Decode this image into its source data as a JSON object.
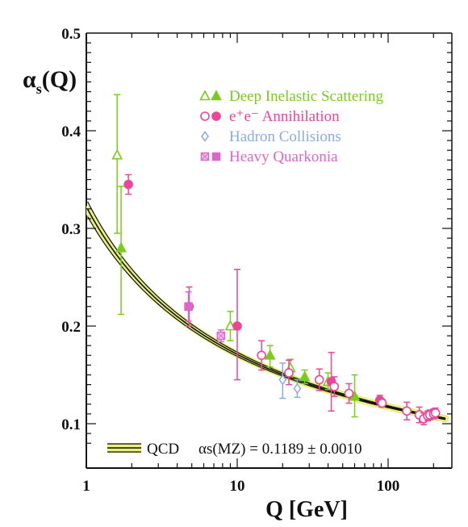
{
  "chart_data": {
    "type": "scatter",
    "title": "",
    "xscale": "log",
    "xlim": [
      1,
      250
    ],
    "ylim": [
      0.08,
      0.5
    ],
    "x_ticks": [
      1,
      10,
      100
    ],
    "x_tick_labels": [
      "1",
      "10",
      "100"
    ],
    "y_ticks": [
      0.1,
      0.2,
      0.3,
      0.4,
      0.5
    ],
    "y_tick_labels": [
      "0.1",
      "0.2",
      "0.3",
      "0.4",
      "0.5"
    ],
    "xlabel": "Q [GeV]",
    "ylabel": {
      "base": "α",
      "sub": "s",
      "tail": "(Q)"
    },
    "grid": false,
    "legend_position": "top-right",
    "colors": {
      "dis": "#7acc1a",
      "ee": "#ee4499",
      "hadron": "#88aaee",
      "quarkonia": "#dd66cc",
      "qcd_band": "#e8f07a",
      "qcd_line": "#111111"
    },
    "legend": [
      {
        "text": "Deep Inelastic Scattering",
        "series": "dis"
      },
      {
        "text": "e⁺e⁻ Annihilation",
        "series": "ee"
      },
      {
        "text": "Hadron Collisions",
        "series": "hadron"
      },
      {
        "text": "Heavy Quarkonia",
        "series": "quarkonia"
      }
    ],
    "qcd": {
      "label": "QCD",
      "formula": "αs(MZ) = 0.1189 ± 0.0010",
      "alpha_mz": 0.1189,
      "uncertainty": 0.001,
      "mz": 91.19
    },
    "series": [
      {
        "name": "Deep Inelastic Scattering",
        "key": "dis",
        "points": [
          {
            "x": 1.6,
            "y": 0.375,
            "lo": 0.295,
            "hi": 0.437,
            "style": "open-triangle"
          },
          {
            "x": 1.7,
            "y": 0.28,
            "lo": 0.212,
            "hi": 0.343,
            "style": "filled-triangle"
          },
          {
            "x": 9.0,
            "y": 0.2,
            "lo": 0.185,
            "hi": 0.215,
            "style": "open-triangle"
          },
          {
            "x": 16.5,
            "y": 0.17,
            "lo": 0.158,
            "hi": 0.18,
            "style": "filled-triangle"
          },
          {
            "x": 22.5,
            "y": 0.157,
            "lo": 0.148,
            "hi": 0.166,
            "style": "open-triangle"
          },
          {
            "x": 28,
            "y": 0.148,
            "lo": 0.141,
            "hi": 0.155,
            "style": "filled-triangle"
          },
          {
            "x": 40,
            "y": 0.143,
            "lo": 0.135,
            "hi": 0.152,
            "style": "open-triangle"
          },
          {
            "x": 60,
            "y": 0.128,
            "lo": 0.107,
            "hi": 0.15,
            "style": "filled-triangle"
          }
        ]
      },
      {
        "name": "e⁺e⁻ Annihilation",
        "key": "ee",
        "points": [
          {
            "x": 1.9,
            "y": 0.345,
            "lo": 0.335,
            "hi": 0.355,
            "style": "filled-circle"
          },
          {
            "x": 4.8,
            "y": 0.22,
            "lo": 0.2,
            "hi": 0.24,
            "style": "filled-circle"
          },
          {
            "x": 10.0,
            "y": 0.2,
            "lo": 0.145,
            "hi": 0.258,
            "style": "filled-circle"
          },
          {
            "x": 14.5,
            "y": 0.17,
            "lo": 0.155,
            "hi": 0.185,
            "style": "open-circle"
          },
          {
            "x": 22,
            "y": 0.152,
            "lo": 0.14,
            "hi": 0.165,
            "style": "open-circle"
          },
          {
            "x": 35,
            "y": 0.145,
            "lo": 0.134,
            "hi": 0.156,
            "style": "open-circle"
          },
          {
            "x": 42,
            "y": 0.143,
            "lo": 0.113,
            "hi": 0.173,
            "style": "filled-circle"
          },
          {
            "x": 44,
            "y": 0.138,
            "lo": 0.128,
            "hi": 0.148,
            "style": "open-circle"
          },
          {
            "x": 55,
            "y": 0.131,
            "lo": 0.121,
            "hi": 0.141,
            "style": "open-circle"
          },
          {
            "x": 88,
            "y": 0.124,
            "lo": 0.119,
            "hi": 0.129,
            "style": "filled-circle"
          },
          {
            "x": 91.2,
            "y": 0.121,
            "lo": 0.117,
            "hi": 0.125,
            "style": "open-circle"
          },
          {
            "x": 133,
            "y": 0.113,
            "lo": 0.104,
            "hi": 0.122,
            "style": "open-circle"
          },
          {
            "x": 161,
            "y": 0.109,
            "lo": 0.101,
            "hi": 0.117,
            "style": "open-circle"
          },
          {
            "x": 172,
            "y": 0.105,
            "lo": 0.099,
            "hi": 0.111,
            "style": "open-circle"
          },
          {
            "x": 183,
            "y": 0.108,
            "lo": 0.103,
            "hi": 0.113,
            "style": "open-circle"
          },
          {
            "x": 189,
            "y": 0.109,
            "lo": 0.104,
            "hi": 0.114,
            "style": "open-circle"
          },
          {
            "x": 200,
            "y": 0.11,
            "lo": 0.105,
            "hi": 0.115,
            "style": "open-circle"
          },
          {
            "x": 206,
            "y": 0.111,
            "lo": 0.106,
            "hi": 0.116,
            "style": "open-circle"
          }
        ]
      },
      {
        "name": "Hadron Collisions",
        "key": "hadron",
        "points": [
          {
            "x": 20,
            "y": 0.145,
            "lo": 0.126,
            "hi": 0.162,
            "style": "open-diamond"
          },
          {
            "x": 25,
            "y": 0.136,
            "lo": 0.127,
            "hi": 0.145,
            "style": "open-diamond"
          }
        ]
      },
      {
        "name": "Heavy Quarkonia",
        "key": "quarkonia",
        "points": [
          {
            "x": 4.75,
            "y": 0.22,
            "lo": 0.205,
            "hi": 0.235,
            "style": "filled-square"
          },
          {
            "x": 7.8,
            "y": 0.19,
            "lo": 0.184,
            "hi": 0.196,
            "style": "hatched-square"
          }
        ]
      }
    ]
  }
}
